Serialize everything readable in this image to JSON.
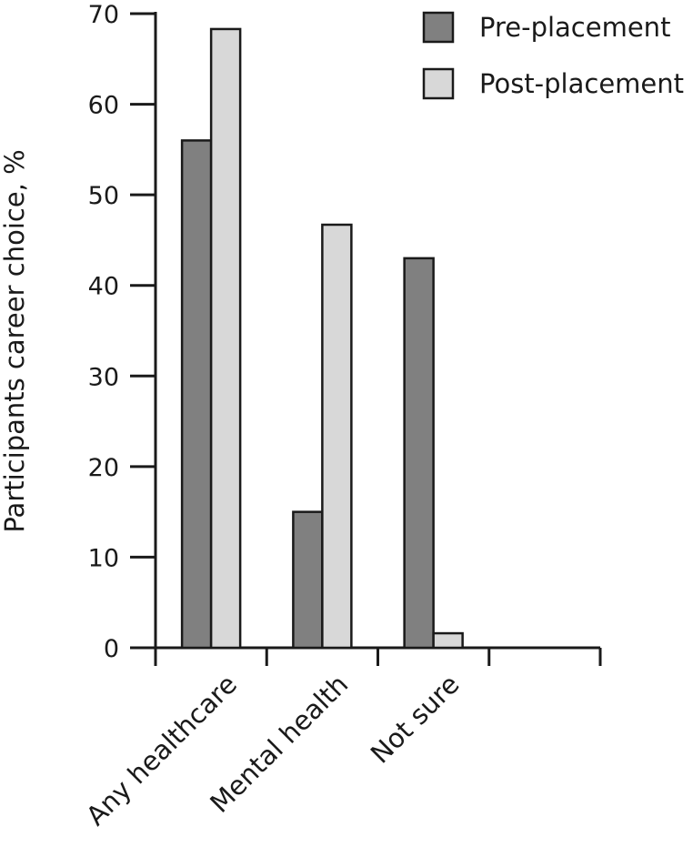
{
  "chart_data": {
    "type": "bar",
    "title": "",
    "xlabel": "",
    "ylabel": "Participants career choice, %",
    "categories": [
      "Any healthcare",
      "Mental health",
      "Not sure"
    ],
    "series": [
      {
        "name": "Pre-placement",
        "color": "#808080",
        "values": [
          56,
          15,
          43
        ]
      },
      {
        "name": "Post-placement",
        "color": "#d8d8d8",
        "values": [
          68.3,
          46.7,
          1.6
        ]
      }
    ],
    "ylim": [
      0,
      70
    ],
    "yticks": [
      0,
      10,
      20,
      30,
      40,
      50,
      60,
      70
    ],
    "grid": false,
    "legend": "top-right"
  }
}
